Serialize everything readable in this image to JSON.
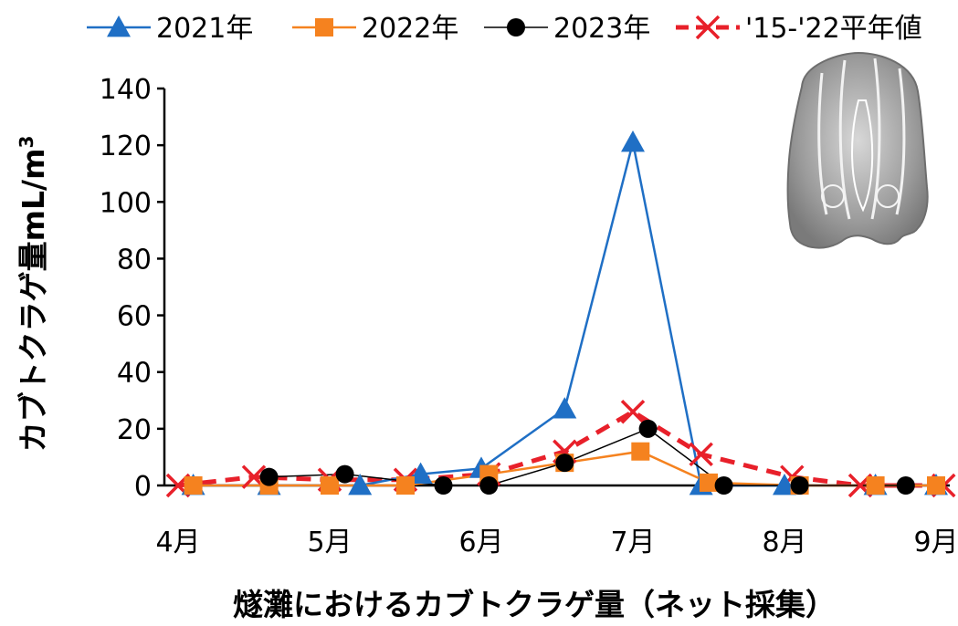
{
  "chart_data": {
    "type": "line",
    "xlabel": "燧灘におけるカブトクラゲ量（ネット採集）",
    "ylabel_main": "カブトクラゲ量mL/m",
    "ylabel_sup": "3",
    "ylim": [
      0,
      140
    ],
    "yticks": [
      "0",
      "20",
      "40",
      "60",
      "80",
      "100",
      "120",
      "140"
    ],
    "xlim": [
      4,
      9
    ],
    "xticks": [
      {
        "value": 4,
        "label": "4月"
      },
      {
        "value": 5,
        "label": "5月"
      },
      {
        "value": 6,
        "label": "6月"
      },
      {
        "value": 7,
        "label": "7月"
      },
      {
        "value": 8,
        "label": "8月"
      },
      {
        "value": 9,
        "label": "9月"
      }
    ],
    "legend_position": "top",
    "grid": false,
    "series": [
      {
        "name": "2021年",
        "color": "#1F6FC5",
        "marker": "triangle",
        "dash": "solid",
        "points": [
          [
            4.1,
            0
          ],
          [
            4.6,
            0
          ],
          [
            5.2,
            0
          ],
          [
            5.6,
            4
          ],
          [
            6.0,
            6
          ],
          [
            6.55,
            27
          ],
          [
            7.0,
            121
          ],
          [
            7.45,
            0
          ],
          [
            8.0,
            0
          ],
          [
            8.6,
            0
          ],
          [
            9.0,
            0
          ]
        ]
      },
      {
        "name": "2022年",
        "color": "#F5821F",
        "marker": "square",
        "dash": "solid",
        "points": [
          [
            4.1,
            0
          ],
          [
            4.6,
            0
          ],
          [
            5.0,
            0
          ],
          [
            5.5,
            0
          ],
          [
            6.05,
            4
          ],
          [
            6.55,
            8
          ],
          [
            7.05,
            12
          ],
          [
            7.5,
            1
          ],
          [
            8.1,
            0
          ],
          [
            8.6,
            0
          ],
          [
            9.0,
            0
          ]
        ]
      },
      {
        "name": "2023年",
        "color": "#000000",
        "marker": "circle",
        "dash": "solid",
        "points": [
          [
            4.6,
            3
          ],
          [
            5.1,
            4
          ],
          [
            5.75,
            0
          ],
          [
            6.05,
            0
          ],
          [
            6.55,
            8
          ],
          [
            7.1,
            20
          ],
          [
            7.6,
            0
          ],
          [
            8.1,
            0
          ],
          [
            8.8,
            0
          ]
        ]
      },
      {
        "name": "'15-'22平年値",
        "color": "#E8202A",
        "marker": "x",
        "dash": "dashed",
        "points": [
          [
            4.0,
            0
          ],
          [
            4.5,
            3
          ],
          [
            5.0,
            2
          ],
          [
            5.5,
            2
          ],
          [
            6.05,
            4
          ],
          [
            6.55,
            12
          ],
          [
            7.0,
            26
          ],
          [
            7.45,
            11
          ],
          [
            8.05,
            3
          ],
          [
            8.5,
            0
          ],
          [
            9.05,
            0
          ]
        ]
      }
    ]
  }
}
